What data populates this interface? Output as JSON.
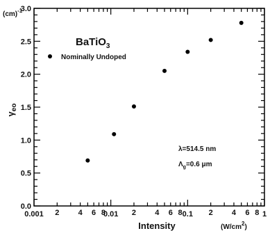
{
  "chart_data": {
    "type": "scatter",
    "title": "BaTiO",
    "title_subscript": "3",
    "xlabel": "Intensity",
    "x_unit_text": "(W/cm",
    "x_unit_sup": "2",
    "x_unit_close": ")",
    "ylabel_main": "γ",
    "ylabel_sub": "eo",
    "y_unit_text": "(cm)",
    "y_unit_sup": "-1",
    "x_scale": "log",
    "xlim": [
      0.001,
      1
    ],
    "ylim": [
      0,
      3.0
    ],
    "grid": false,
    "legend_position": "top-left",
    "x_major_ticks": [
      0.001,
      0.01,
      0.1,
      1
    ],
    "x_major_labels": [
      "0.001",
      "0.01",
      "0.1",
      "1"
    ],
    "x_minor_label_digits": [
      "2",
      "4",
      "6",
      "8"
    ],
    "y_ticks": [
      0.0,
      0.5,
      1.0,
      1.5,
      2.0,
      2.5,
      3.0
    ],
    "y_tick_labels": [
      "0.0",
      "0.5",
      "1.0",
      "1.5",
      "2.0",
      "2.5",
      "3.0"
    ],
    "series": [
      {
        "name": "Nominally Undoped",
        "x": [
          0.005,
          0.011,
          0.02,
          0.05,
          0.1,
          0.2,
          0.5
        ],
        "y": [
          0.69,
          1.09,
          1.51,
          2.05,
          2.34,
          2.52,
          2.78
        ]
      }
    ],
    "annotations": [
      {
        "id": "wavelength",
        "text": "λ=514.5  nm"
      },
      {
        "id": "grating",
        "text": "Λ",
        "sub": "g",
        "text_after": "=0.6  μm"
      }
    ],
    "colors": {
      "marker": "#000000",
      "axes": "#000000",
      "text": "#111111"
    }
  }
}
